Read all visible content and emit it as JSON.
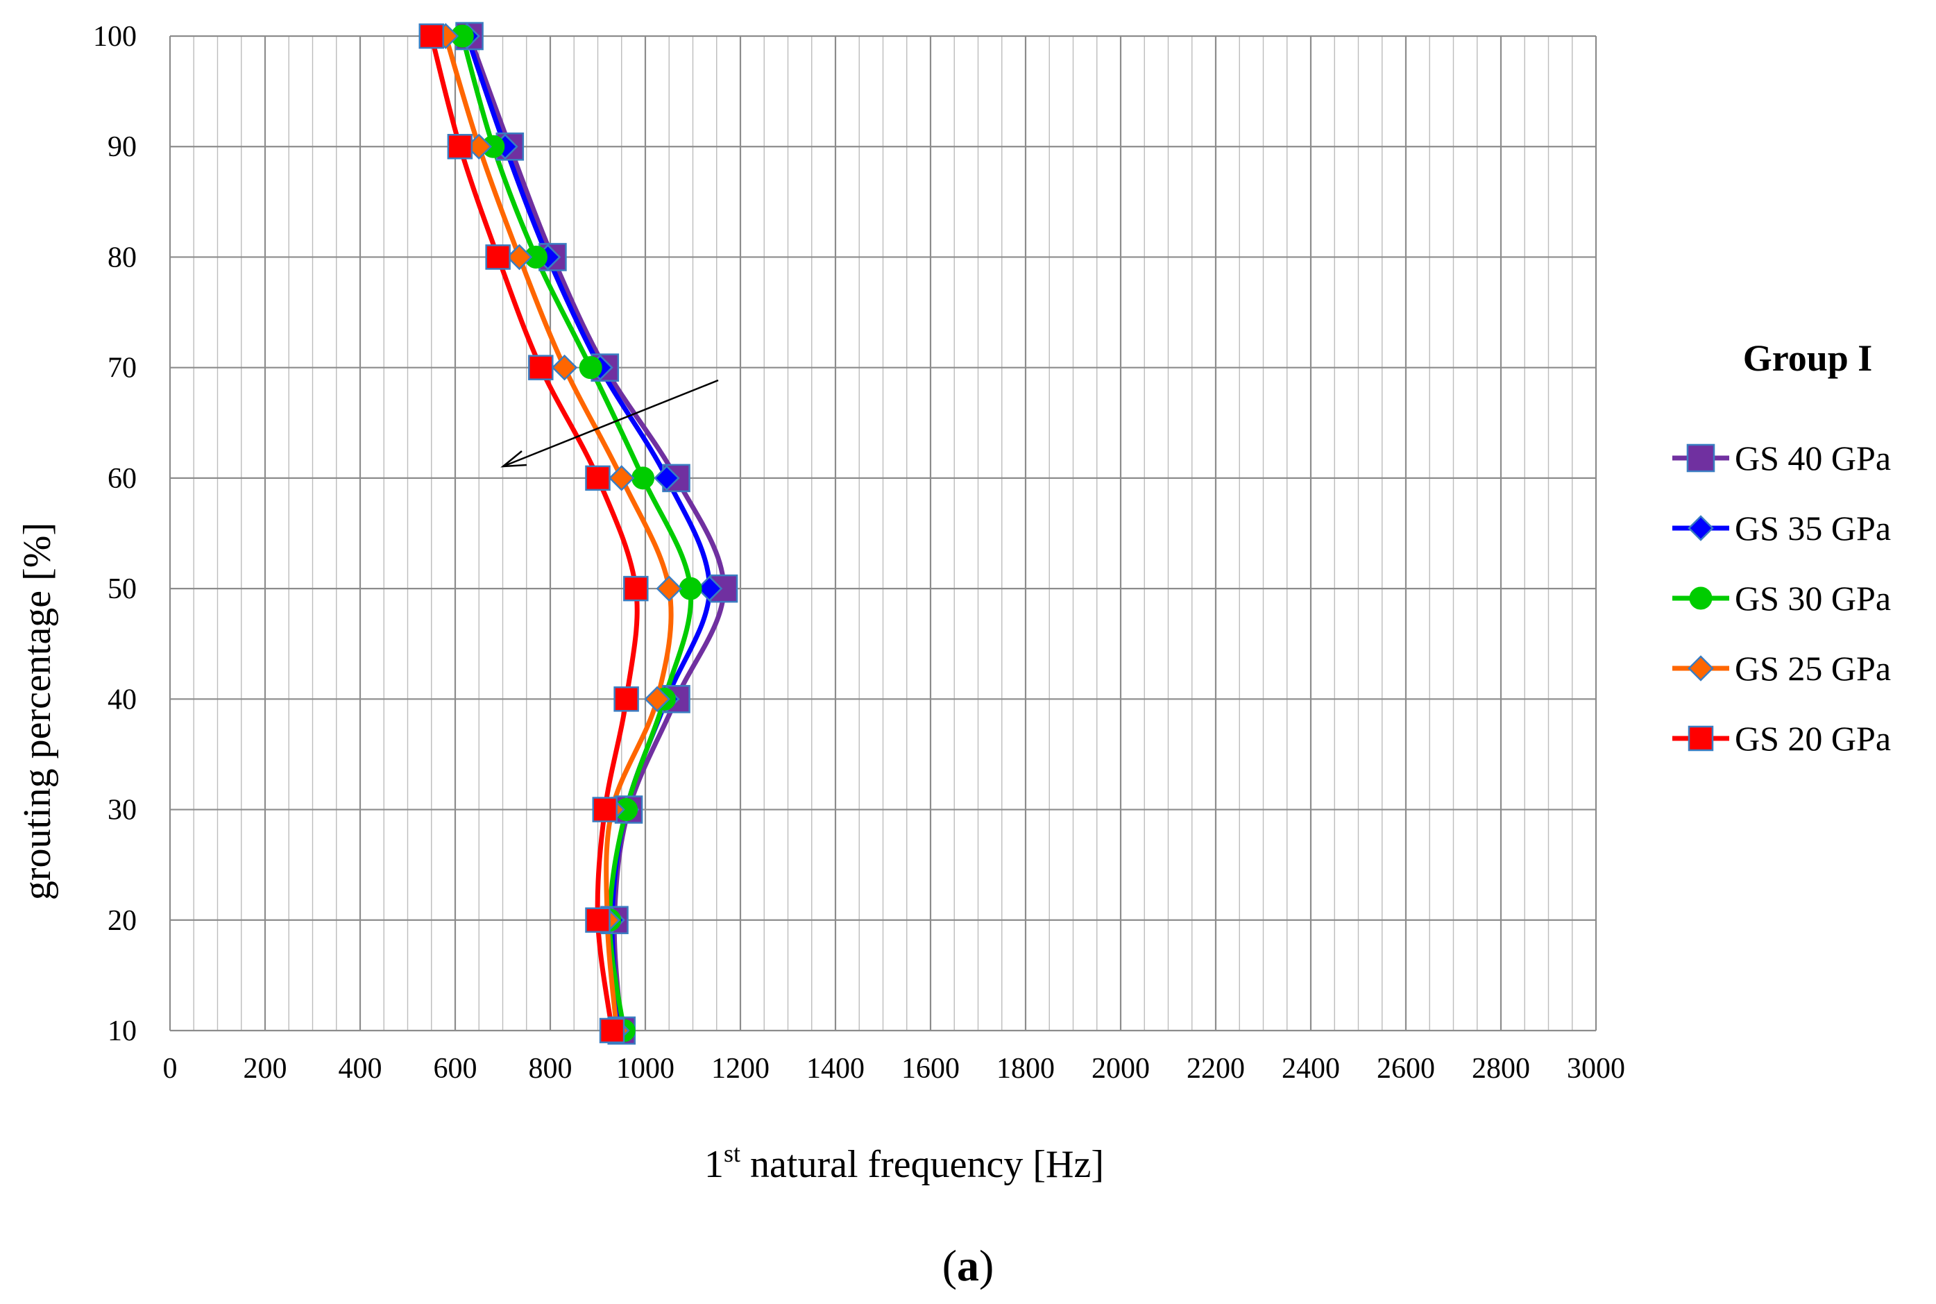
{
  "chart_data": {
    "type": "line",
    "title": "",
    "xlabel_prefix": "1",
    "xlabel_superscript": "st",
    "xlabel_suffix": " natural frequency [Hz]",
    "ylabel": "grouting percentage [%]",
    "xlim": [
      0,
      3000
    ],
    "ylim": [
      10,
      100
    ],
    "x_ticks": [
      "0",
      "200",
      "400",
      "600",
      "800",
      "1000",
      "1200",
      "1400",
      "1600",
      "1800",
      "2000",
      "2200",
      "2400",
      "2600",
      "2800",
      "3000"
    ],
    "y_ticks": [
      "10",
      "20",
      "30",
      "40",
      "50",
      "60",
      "70",
      "80",
      "90",
      "100"
    ],
    "grid": true,
    "legend_title": "Group I",
    "legend_position": "right",
    "caption_open": "(",
    "caption_letter": "a",
    "caption_close": ")",
    "y": [
      100,
      90,
      80,
      70,
      60,
      50,
      40,
      30,
      20,
      10
    ],
    "series": [
      {
        "name": "GS 40 GPa",
        "color": "#7030A0",
        "marker": "square",
        "marker_color": "#7030A0",
        "x": [
          630,
          715,
          805,
          915,
          1065,
          1165,
          1065,
          965,
          935,
          950
        ]
      },
      {
        "name": "GS 35 GPa",
        "color": "#0000FF",
        "marker": "diamond",
        "marker_color": "#0000FF",
        "x": [
          625,
          705,
          795,
          905,
          1045,
          1135,
          1045,
          960,
          930,
          948
        ]
      },
      {
        "name": "GS 30 GPa",
        "color": "#00CC00",
        "marker": "circle",
        "marker_color": "#00CC00",
        "x": [
          615,
          680,
          770,
          885,
          995,
          1095,
          1040,
          960,
          925,
          955
        ]
      },
      {
        "name": "GS 25 GPa",
        "color": "#FF6600",
        "marker": "diamond",
        "marker_color": "#FF6600",
        "x": [
          580,
          650,
          735,
          830,
          950,
          1050,
          1025,
          930,
          920,
          940
        ]
      },
      {
        "name": "GS 20 GPa",
        "color": "#FF0000",
        "marker": "square",
        "marker_color": "#FF0000",
        "x": [
          550,
          610,
          690,
          780,
          900,
          980,
          960,
          915,
          900,
          930
        ]
      }
    ]
  }
}
